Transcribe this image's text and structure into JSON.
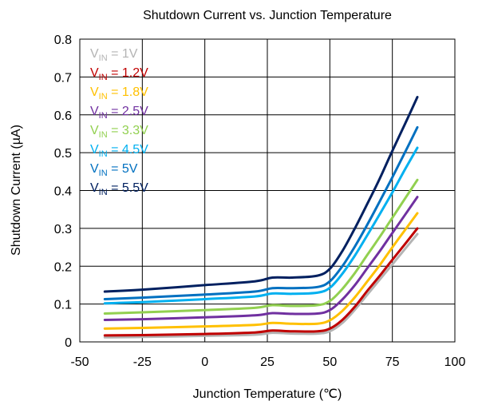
{
  "chart_data": {
    "type": "line",
    "title": "Shutdown Current vs. Junction Temperature",
    "xlabel": "Junction Temperature (℃)",
    "ylabel": "Shutdown Current (µA)",
    "xlim": [
      -50,
      100
    ],
    "ylim": [
      0,
      0.8
    ],
    "xticks": [
      "-50",
      "-25",
      "0",
      "25",
      "50",
      "75",
      "100"
    ],
    "yticks": [
      "0",
      "0.1",
      "0.2",
      "0.3",
      "0.4",
      "0.5",
      "0.6",
      "0.7",
      "0.8"
    ],
    "grid": true,
    "legend_position": "top-left",
    "series": [
      {
        "name_main": "V",
        "name_sub": "IN",
        "name_tail": " = 1V",
        "color": "#b4b4b4",
        "x": [
          -40,
          -25,
          0,
          20,
          27,
          35,
          45,
          50,
          55,
          60,
          65,
          70,
          75,
          80,
          85
        ],
        "values": [
          0.012,
          0.013,
          0.016,
          0.019,
          0.024,
          0.022,
          0.022,
          0.028,
          0.05,
          0.085,
          0.125,
          0.165,
          0.205,
          0.245,
          0.285
        ]
      },
      {
        "name_main": "V",
        "name_sub": "IN",
        "name_tail": " = 1.2V",
        "color": "#c00000",
        "x": [
          -40,
          -25,
          0,
          20,
          27,
          35,
          45,
          50,
          55,
          60,
          65,
          70,
          75,
          80,
          85
        ],
        "values": [
          0.017,
          0.018,
          0.021,
          0.025,
          0.03,
          0.028,
          0.028,
          0.035,
          0.058,
          0.093,
          0.135,
          0.175,
          0.217,
          0.258,
          0.3
        ]
      },
      {
        "name_main": "V",
        "name_sub": "IN",
        "name_tail": " = 1.8V",
        "color": "#ffc000",
        "x": [
          -40,
          -25,
          0,
          20,
          27,
          35,
          45,
          50,
          55,
          60,
          65,
          70,
          75,
          80,
          85
        ],
        "values": [
          0.035,
          0.037,
          0.041,
          0.045,
          0.05,
          0.048,
          0.048,
          0.057,
          0.082,
          0.118,
          0.16,
          0.203,
          0.25,
          0.295,
          0.34
        ]
      },
      {
        "name_main": "V",
        "name_sub": "IN",
        "name_tail": " = 2.5V",
        "color": "#7030a0",
        "x": [
          -40,
          -25,
          0,
          20,
          27,
          35,
          45,
          50,
          55,
          60,
          65,
          70,
          75,
          80,
          85
        ],
        "values": [
          0.058,
          0.06,
          0.065,
          0.07,
          0.076,
          0.074,
          0.075,
          0.084,
          0.112,
          0.15,
          0.195,
          0.24,
          0.288,
          0.335,
          0.383
        ]
      },
      {
        "name_main": "V",
        "name_sub": "IN",
        "name_tail": " = 3.3V",
        "color": "#92d050",
        "x": [
          -40,
          -25,
          0,
          20,
          27,
          35,
          45,
          50,
          55,
          60,
          65,
          70,
          75,
          80,
          85
        ],
        "values": [
          0.075,
          0.078,
          0.084,
          0.09,
          0.097,
          0.095,
          0.097,
          0.108,
          0.14,
          0.182,
          0.23,
          0.278,
          0.328,
          0.378,
          0.428
        ]
      },
      {
        "name_main": "V",
        "name_sub": "IN",
        "name_tail": " = 4.5V",
        "color": "#00b0f0",
        "x": [
          -40,
          -25,
          0,
          20,
          27,
          35,
          45,
          50,
          55,
          60,
          65,
          70,
          75,
          80,
          85
        ],
        "values": [
          0.102,
          0.105,
          0.113,
          0.12,
          0.128,
          0.127,
          0.13,
          0.143,
          0.18,
          0.228,
          0.282,
          0.338,
          0.395,
          0.455,
          0.513
        ]
      },
      {
        "name_main": "V",
        "name_sub": "IN",
        "name_tail": " = 5V",
        "color": "#0070c0",
        "x": [
          -40,
          -25,
          0,
          20,
          27,
          35,
          45,
          50,
          55,
          60,
          65,
          70,
          75,
          80,
          85
        ],
        "values": [
          0.113,
          0.117,
          0.125,
          0.133,
          0.142,
          0.142,
          0.145,
          0.16,
          0.2,
          0.252,
          0.31,
          0.372,
          0.435,
          0.5,
          0.567
        ]
      },
      {
        "name_main": "V",
        "name_sub": "IN",
        "name_tail": " = 5.5V",
        "color": "#002060",
        "x": [
          -40,
          -25,
          0,
          20,
          27,
          35,
          45,
          50,
          55,
          60,
          65,
          70,
          75,
          80,
          85
        ],
        "values": [
          0.133,
          0.138,
          0.15,
          0.16,
          0.17,
          0.17,
          0.175,
          0.193,
          0.24,
          0.3,
          0.365,
          0.432,
          0.505,
          0.575,
          0.647
        ]
      }
    ]
  }
}
